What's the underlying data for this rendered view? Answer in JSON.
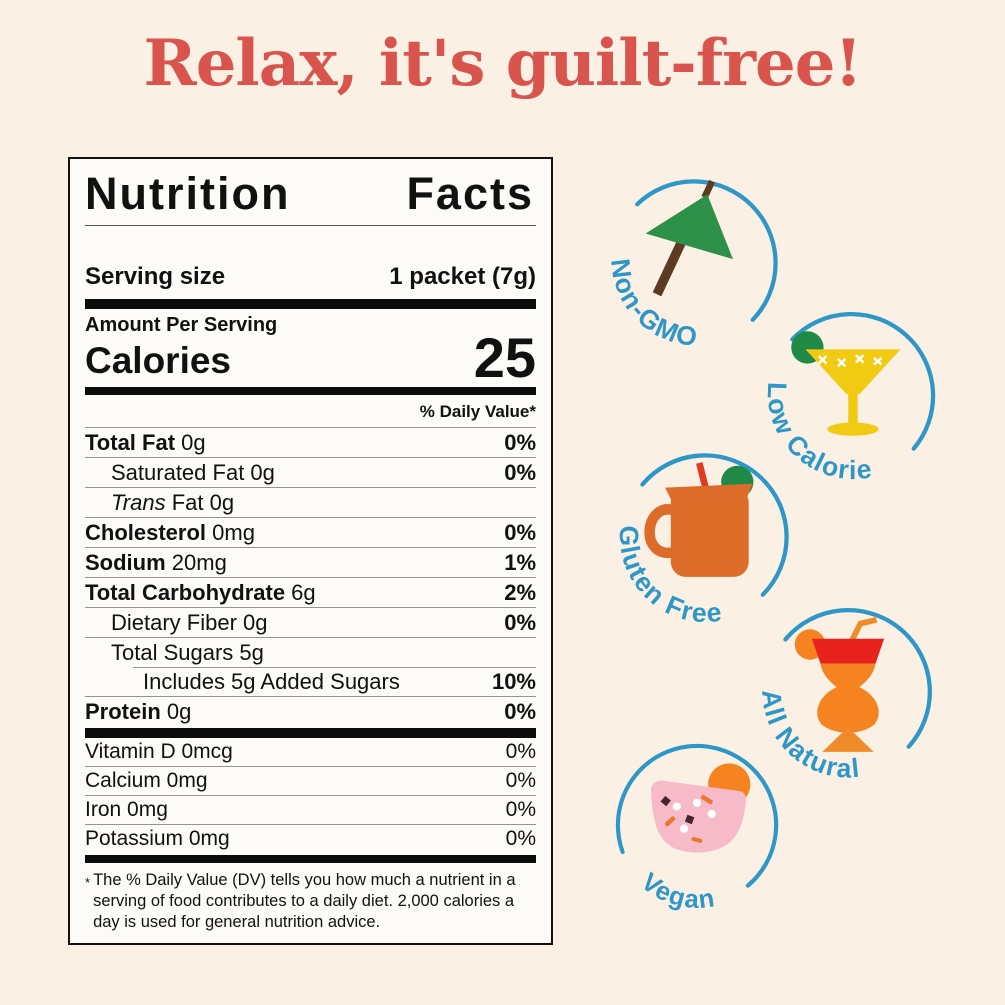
{
  "page": {
    "title": "Relax, it's guilt-free!",
    "background_color": "#fbf0e4",
    "title_color": "#d8544d",
    "badge_blue": "#2f97c8"
  },
  "label": {
    "title_word1": "Nutrition",
    "title_word2": "Facts",
    "serving_size_label": "Serving size",
    "serving_size_value": "1 packet (7g)",
    "amount_per_serving": "Amount Per Serving",
    "calories_label": "Calories",
    "calories_value": "25",
    "daily_value_header": "% Daily Value*",
    "nutrients": [
      {
        "b": "Total Fat",
        "r": " 0g",
        "dv": "0%",
        "dvb": true,
        "ind": 0,
        "line": "none"
      },
      {
        "r": "Saturated Fat 0g",
        "dv": "0%",
        "dvb": true,
        "ind": 1,
        "line": "full"
      },
      {
        "i": "Trans",
        "r": " Fat 0g",
        "dv": "",
        "ind": 1,
        "line": "full"
      },
      {
        "b": "Cholesterol",
        "r": " 0mg",
        "dv": "0%",
        "dvb": true,
        "ind": 0,
        "line": "full"
      },
      {
        "b": "Sodium",
        "r": " 20mg",
        "dv": "1%",
        "dvb": true,
        "ind": 0,
        "line": "full"
      },
      {
        "b": "Total Carbohydrate",
        "r": " 6g",
        "dv": "2%",
        "dvb": true,
        "ind": 0,
        "line": "full"
      },
      {
        "r": "Dietary Fiber 0g",
        "dv": "0%",
        "dvb": true,
        "ind": 1,
        "line": "full"
      },
      {
        "r": "Total Sugars 5g",
        "dv": "",
        "ind": 1,
        "line": "full"
      },
      {
        "r": "Includes 5g Added Sugars",
        "dv": "10%",
        "dvb": true,
        "ind": 2,
        "line": "indent"
      },
      {
        "b": "Protein",
        "r": " 0g",
        "dv": "0%",
        "dvb": true,
        "ind": 0,
        "line": "full"
      }
    ],
    "vitamins": [
      {
        "n": "Vitamin D 0mcg",
        "dv": "0%"
      },
      {
        "n": "Calcium 0mg",
        "dv": "0%"
      },
      {
        "n": "Iron 0mg",
        "dv": "0%"
      },
      {
        "n": "Potassium 0mg",
        "dv": "0%"
      }
    ],
    "footnote_symbol": "*",
    "footnote": "The % Daily Value (DV) tells you how much a nutrient in a serving of food contributes to a daily diet. 2,000 calories a day is used for general nutrition advice."
  },
  "badges": [
    {
      "label": "Non-GMO",
      "icon": "cocktail-umbrella"
    },
    {
      "label": "Low Calorie",
      "icon": "margarita-glass"
    },
    {
      "label": "Gluten Free",
      "icon": "mule-mug"
    },
    {
      "label": "All Natural",
      "icon": "hurricane-cocktail"
    },
    {
      "label": "Vegan",
      "icon": "pink-drink"
    }
  ]
}
